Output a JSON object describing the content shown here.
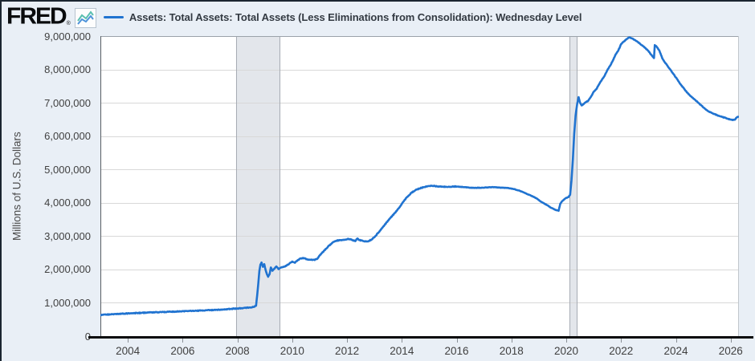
{
  "header": {
    "logo_text": "FRED",
    "logo_reg_mark": "®"
  },
  "y_axis": {
    "title": "Millions of U.S. Dollars",
    "tick_labels": [
      "9,000,000",
      "8,000,000",
      "7,000,000",
      "6,000,000",
      "5,000,000",
      "4,000,000",
      "3,000,000",
      "2,000,000",
      "1,000,000",
      "0"
    ]
  },
  "x_axis": {
    "tick_labels": [
      "2004",
      "2006",
      "2008",
      "2010",
      "2012",
      "2014",
      "2016",
      "2018",
      "2020",
      "2022",
      "2024",
      "2026"
    ]
  },
  "colors": {
    "series_line": "#2073d0",
    "page_background": "#e9eff6",
    "plot_background": "#ffffff",
    "gridline": "#d8d8d8",
    "recession_band_fill": "#e3e6eb",
    "recession_band_edge": "#a7acb4",
    "axis_black": "#0a0a0a",
    "logo_icon_blue": "#4e93d9",
    "logo_icon_teal": "#5abfb0"
  },
  "chart_data": {
    "type": "line",
    "title": "Assets: Total Assets: Total Assets (Less Eliminations from Consolidation): Wednesday Level",
    "ylabel": "Millions of U.S. Dollars",
    "xlim": [
      2003.0,
      2026.3
    ],
    "ylim": [
      0,
      9000000
    ],
    "grid": "horizontal",
    "legend_position": "top",
    "recession_bands": [
      {
        "start": 2007.95,
        "end": 2009.55
      },
      {
        "start": 2020.12,
        "end": 2020.38
      }
    ],
    "series": [
      {
        "name": "Assets: Total Assets: Total Assets (Less Eliminations from Consolidation): Wednesday Level",
        "color": "#2073d0",
        "points": [
          [
            2003.0,
            630000
          ],
          [
            2003.2,
            645000
          ],
          [
            2003.4,
            655000
          ],
          [
            2003.6,
            665000
          ],
          [
            2003.8,
            672000
          ],
          [
            2004.0,
            680000
          ],
          [
            2004.25,
            690000
          ],
          [
            2004.5,
            700000
          ],
          [
            2004.75,
            708000
          ],
          [
            2005.0,
            715000
          ],
          [
            2005.25,
            722000
          ],
          [
            2005.5,
            730000
          ],
          [
            2005.75,
            738000
          ],
          [
            2006.0,
            748000
          ],
          [
            2006.25,
            755000
          ],
          [
            2006.5,
            762000
          ],
          [
            2006.75,
            770000
          ],
          [
            2007.0,
            780000
          ],
          [
            2007.25,
            790000
          ],
          [
            2007.5,
            800000
          ],
          [
            2007.75,
            815000
          ],
          [
            2008.0,
            830000
          ],
          [
            2008.15,
            840000
          ],
          [
            2008.3,
            850000
          ],
          [
            2008.45,
            860000
          ],
          [
            2008.6,
            880000
          ],
          [
            2008.68,
            910000
          ],
          [
            2008.72,
            1220000
          ],
          [
            2008.76,
            1560000
          ],
          [
            2008.8,
            1950000
          ],
          [
            2008.84,
            2150000
          ],
          [
            2008.88,
            2210000
          ],
          [
            2008.93,
            2080000
          ],
          [
            2008.98,
            2160000
          ],
          [
            2009.03,
            1980000
          ],
          [
            2009.08,
            1850000
          ],
          [
            2009.12,
            1780000
          ],
          [
            2009.17,
            1850000
          ],
          [
            2009.22,
            2060000
          ],
          [
            2009.28,
            1960000
          ],
          [
            2009.35,
            2030000
          ],
          [
            2009.42,
            2090000
          ],
          [
            2009.5,
            2010000
          ],
          [
            2009.6,
            2060000
          ],
          [
            2009.7,
            2080000
          ],
          [
            2009.8,
            2120000
          ],
          [
            2009.9,
            2180000
          ],
          [
            2010.0,
            2240000
          ],
          [
            2010.1,
            2200000
          ],
          [
            2010.2,
            2280000
          ],
          [
            2010.3,
            2330000
          ],
          [
            2010.45,
            2340000
          ],
          [
            2010.55,
            2300000
          ],
          [
            2010.65,
            2290000
          ],
          [
            2010.8,
            2290000
          ],
          [
            2010.9,
            2310000
          ],
          [
            2011.0,
            2420000
          ],
          [
            2011.15,
            2550000
          ],
          [
            2011.3,
            2680000
          ],
          [
            2011.45,
            2790000
          ],
          [
            2011.6,
            2860000
          ],
          [
            2011.75,
            2880000
          ],
          [
            2011.9,
            2890000
          ],
          [
            2012.05,
            2920000
          ],
          [
            2012.2,
            2880000
          ],
          [
            2012.3,
            2850000
          ],
          [
            2012.38,
            2930000
          ],
          [
            2012.45,
            2880000
          ],
          [
            2012.6,
            2850000
          ],
          [
            2012.75,
            2840000
          ],
          [
            2012.9,
            2900000
          ],
          [
            2013.0,
            2970000
          ],
          [
            2013.15,
            3110000
          ],
          [
            2013.3,
            3260000
          ],
          [
            2013.45,
            3420000
          ],
          [
            2013.6,
            3560000
          ],
          [
            2013.75,
            3700000
          ],
          [
            2013.9,
            3850000
          ],
          [
            2014.05,
            4030000
          ],
          [
            2014.2,
            4180000
          ],
          [
            2014.35,
            4300000
          ],
          [
            2014.5,
            4380000
          ],
          [
            2014.65,
            4430000
          ],
          [
            2014.8,
            4470000
          ],
          [
            2014.95,
            4500000
          ],
          [
            2015.1,
            4510000
          ],
          [
            2015.3,
            4490000
          ],
          [
            2015.5,
            4480000
          ],
          [
            2015.7,
            4480000
          ],
          [
            2015.9,
            4490000
          ],
          [
            2016.1,
            4480000
          ],
          [
            2016.3,
            4470000
          ],
          [
            2016.5,
            4450000
          ],
          [
            2016.7,
            4450000
          ],
          [
            2016.9,
            4450000
          ],
          [
            2017.1,
            4460000
          ],
          [
            2017.3,
            4470000
          ],
          [
            2017.5,
            4460000
          ],
          [
            2017.7,
            4450000
          ],
          [
            2017.9,
            4440000
          ],
          [
            2018.1,
            4410000
          ],
          [
            2018.3,
            4360000
          ],
          [
            2018.5,
            4290000
          ],
          [
            2018.7,
            4220000
          ],
          [
            2018.9,
            4140000
          ],
          [
            2019.1,
            4020000
          ],
          [
            2019.3,
            3930000
          ],
          [
            2019.45,
            3850000
          ],
          [
            2019.6,
            3790000
          ],
          [
            2019.72,
            3760000
          ],
          [
            2019.78,
            3970000
          ],
          [
            2019.85,
            4050000
          ],
          [
            2019.92,
            4100000
          ],
          [
            2020.0,
            4150000
          ],
          [
            2020.08,
            4170000
          ],
          [
            2020.14,
            4240000
          ],
          [
            2020.19,
            4670000
          ],
          [
            2020.24,
            5300000
          ],
          [
            2020.29,
            6080000
          ],
          [
            2020.34,
            6620000
          ],
          [
            2020.4,
            6980000
          ],
          [
            2020.45,
            7170000
          ],
          [
            2020.5,
            7010000
          ],
          [
            2020.56,
            6920000
          ],
          [
            2020.63,
            6960000
          ],
          [
            2020.7,
            7010000
          ],
          [
            2020.8,
            7060000
          ],
          [
            2020.9,
            7180000
          ],
          [
            2021.0,
            7330000
          ],
          [
            2021.1,
            7410000
          ],
          [
            2021.2,
            7560000
          ],
          [
            2021.3,
            7690000
          ],
          [
            2021.4,
            7810000
          ],
          [
            2021.5,
            7980000
          ],
          [
            2021.6,
            8110000
          ],
          [
            2021.7,
            8270000
          ],
          [
            2021.8,
            8450000
          ],
          [
            2021.9,
            8570000
          ],
          [
            2022.0,
            8760000
          ],
          [
            2022.1,
            8840000
          ],
          [
            2022.2,
            8910000
          ],
          [
            2022.3,
            8960000
          ],
          [
            2022.4,
            8930000
          ],
          [
            2022.5,
            8880000
          ],
          [
            2022.6,
            8830000
          ],
          [
            2022.7,
            8760000
          ],
          [
            2022.8,
            8700000
          ],
          [
            2022.9,
            8630000
          ],
          [
            2023.0,
            8550000
          ],
          [
            2023.1,
            8440000
          ],
          [
            2023.17,
            8370000
          ],
          [
            2023.2,
            8340000
          ],
          [
            2023.23,
            8730000
          ],
          [
            2023.3,
            8680000
          ],
          [
            2023.4,
            8560000
          ],
          [
            2023.5,
            8340000
          ],
          [
            2023.6,
            8210000
          ],
          [
            2023.7,
            8100000
          ],
          [
            2023.8,
            7990000
          ],
          [
            2023.9,
            7870000
          ],
          [
            2024.0,
            7760000
          ],
          [
            2024.1,
            7640000
          ],
          [
            2024.2,
            7520000
          ],
          [
            2024.3,
            7420000
          ],
          [
            2024.4,
            7310000
          ],
          [
            2024.5,
            7230000
          ],
          [
            2024.6,
            7160000
          ],
          [
            2024.7,
            7090000
          ],
          [
            2024.8,
            7010000
          ],
          [
            2024.9,
            6940000
          ],
          [
            2025.0,
            6860000
          ],
          [
            2025.1,
            6790000
          ],
          [
            2025.2,
            6740000
          ],
          [
            2025.3,
            6700000
          ],
          [
            2025.4,
            6660000
          ],
          [
            2025.5,
            6630000
          ],
          [
            2025.6,
            6600000
          ],
          [
            2025.7,
            6570000
          ],
          [
            2025.8,
            6550000
          ],
          [
            2025.9,
            6520000
          ],
          [
            2026.0,
            6500000
          ],
          [
            2026.08,
            6480000
          ],
          [
            2026.15,
            6490000
          ],
          [
            2026.22,
            6560000
          ],
          [
            2026.27,
            6580000
          ]
        ]
      }
    ]
  }
}
